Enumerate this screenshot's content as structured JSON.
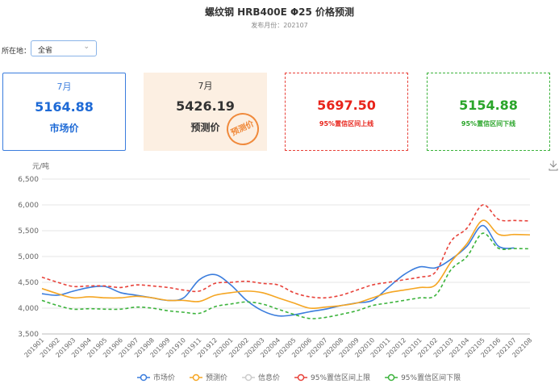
{
  "header": {
    "title": "螺纹钢 HRB400E Φ25 价格预测",
    "subtitle": "发布月份：202107"
  },
  "filter": {
    "label": "所在地：",
    "value": "全省"
  },
  "cards": [
    {
      "month": "7月",
      "value": "5164.88",
      "label": "市场价"
    },
    {
      "month": "7月",
      "value": "5426.19",
      "label": "预测价",
      "stamp": "预测价"
    },
    {
      "value": "5697.50",
      "label": "95%置信区间上线"
    },
    {
      "value": "5154.88",
      "label": "95%置信区间下线"
    }
  ],
  "chart_data": {
    "type": "line",
    "y_unit": "元/吨",
    "categories": [
      "201901",
      "201902",
      "201903",
      "201904",
      "201905",
      "201906",
      "201907",
      "201908",
      "201909",
      "201910",
      "201911",
      "201912",
      "202001",
      "202002",
      "202003",
      "202004",
      "202005",
      "202006",
      "202007",
      "202008",
      "202009",
      "202010",
      "202011",
      "202012",
      "202101",
      "202102",
      "202103",
      "202104",
      "202105",
      "202106",
      "202107",
      "202108"
    ],
    "ylim": [
      3500,
      6500
    ],
    "yticks": [
      {
        "value": 3500,
        "label": "3,500"
      },
      {
        "value": 4000,
        "label": "4,000"
      },
      {
        "value": 4500,
        "label": "4,500"
      },
      {
        "value": 5000,
        "label": "5,000"
      },
      {
        "value": 5500,
        "label": "5,500"
      },
      {
        "value": 6000,
        "label": "6,000"
      },
      {
        "value": 6500,
        "label": "6,500"
      }
    ],
    "grid": true,
    "series": [
      {
        "name": "市场价",
        "color": "#3b7ddd",
        "line_style": "solid",
        "values": [
          4280,
          4250,
          4330,
          4400,
          4420,
          4300,
          4250,
          4200,
          4150,
          4200,
          4550,
          4650,
          4450,
          4150,
          3950,
          3850,
          3870,
          3930,
          3980,
          4050,
          4100,
          4150,
          4400,
          4650,
          4800,
          4780,
          4950,
          5200,
          5600,
          5200,
          5164.88,
          null
        ]
      },
      {
        "name": "预测价",
        "color": "#f5a623",
        "line_style": "solid",
        "values": [
          4380,
          4280,
          4200,
          4220,
          4200,
          4200,
          4230,
          4200,
          4150,
          4150,
          4130,
          4250,
          4300,
          4330,
          4300,
          4200,
          4100,
          4000,
          4020,
          4050,
          4100,
          4200,
          4300,
          4350,
          4400,
          4450,
          4900,
          5250,
          5700,
          5430,
          5426.19,
          5420
        ]
      },
      {
        "name": "信息价",
        "color": "#cccccc",
        "line_style": "solid",
        "values": [
          null,
          null,
          null,
          null,
          null,
          null,
          null,
          null,
          null,
          null,
          null,
          null,
          null,
          null,
          null,
          null,
          null,
          null,
          null,
          null,
          null,
          null,
          null,
          null,
          null,
          null,
          null,
          null,
          null,
          null,
          null,
          null
        ]
      },
      {
        "name": "95%置信区间上限",
        "color": "#e8423a",
        "line_style": "dashed",
        "values": [
          4600,
          4500,
          4420,
          4430,
          4430,
          4400,
          4450,
          4430,
          4400,
          4350,
          4330,
          4480,
          4500,
          4520,
          4480,
          4450,
          4300,
          4220,
          4200,
          4250,
          4350,
          4450,
          4500,
          4550,
          4600,
          4700,
          5300,
          5550,
          6000,
          5720,
          5697.5,
          5690
        ]
      },
      {
        "name": "95%置信区间下限",
        "color": "#3cb33c",
        "line_style": "dashed",
        "values": [
          4150,
          4050,
          3980,
          3990,
          3980,
          3980,
          4020,
          4000,
          3950,
          3920,
          3900,
          4030,
          4080,
          4120,
          4080,
          3980,
          3880,
          3800,
          3820,
          3880,
          3950,
          4050,
          4100,
          4150,
          4200,
          4250,
          4750,
          5000,
          5450,
          5160,
          5154.88,
          5150
        ]
      }
    ]
  }
}
